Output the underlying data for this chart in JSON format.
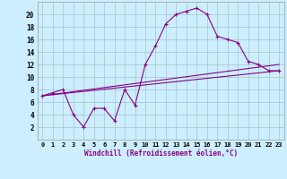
{
  "xlabel": "Windchill (Refroidissement éolien,°C)",
  "background_color": "#cceeff",
  "grid_color": "#aacccc",
  "line_color": "#880088",
  "xlim": [
    -0.5,
    23.5
  ],
  "ylim": [
    0,
    22
  ],
  "xticks": [
    0,
    1,
    2,
    3,
    4,
    5,
    6,
    7,
    8,
    9,
    10,
    11,
    12,
    13,
    14,
    15,
    16,
    17,
    18,
    19,
    20,
    21,
    22,
    23
  ],
  "yticks": [
    2,
    4,
    6,
    8,
    10,
    12,
    14,
    16,
    18,
    20
  ],
  "line1_x": [
    0,
    1,
    2,
    3,
    4,
    5,
    6,
    7,
    8,
    9,
    10,
    11,
    12,
    13,
    14,
    15,
    16,
    17,
    18,
    19,
    20,
    21,
    22,
    23
  ],
  "line1_y": [
    7.0,
    7.5,
    8.0,
    4.0,
    2.0,
    5.0,
    5.0,
    3.0,
    8.0,
    5.5,
    12.0,
    15.0,
    18.5,
    20.0,
    20.5,
    21.0,
    20.0,
    16.5,
    16.0,
    15.5,
    12.5,
    12.0,
    11.0,
    11.0
  ],
  "line2_x": [
    0,
    23
  ],
  "line2_y": [
    7.0,
    11.0
  ],
  "line3_x": [
    0,
    23
  ],
  "line3_y": [
    7.0,
    12.0
  ]
}
